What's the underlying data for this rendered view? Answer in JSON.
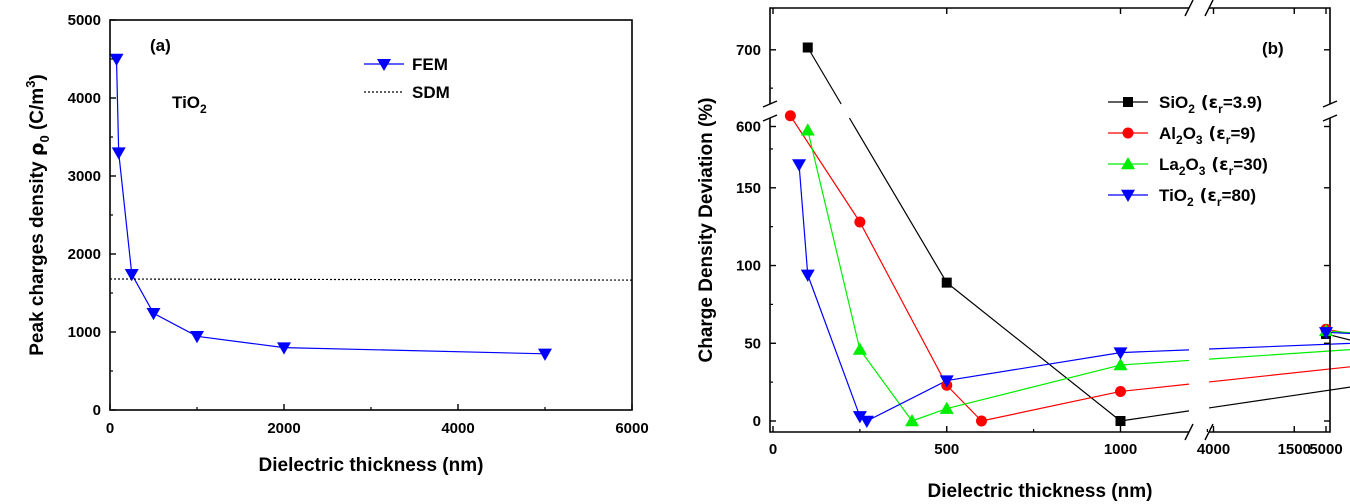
{
  "chart_data": [
    {
      "type": "line",
      "panel": "(a)",
      "annotation": "TiO",
      "annotation_sub": "2",
      "xlabel": "Dielectric thickness (nm)",
      "ylabel": "Peak charges density",
      "ylabel_greek": "ρ",
      "ylabel_sub": "0",
      "ylabel_unit": "(C/m",
      "ylabel_unit_sup": "3",
      "ylabel_unit_close": ")",
      "xlim": [
        0,
        6000
      ],
      "ylim": [
        0,
        5000
      ],
      "xticks": [
        "0",
        "2000",
        "4000",
        "6000"
      ],
      "yticks": [
        "0",
        "1000",
        "2000",
        "3000",
        "4000",
        "5000"
      ],
      "legend_position": "top-right",
      "series": [
        {
          "name": "FEM",
          "color": "#0000ff",
          "marker": "triangle-down",
          "x": [
            75,
            100,
            250,
            500,
            1000,
            2000,
            5000
          ],
          "y": [
            4500,
            3300,
            1740,
            1240,
            945,
            800,
            720
          ]
        },
        {
          "name": "SDM",
          "color": "#000000",
          "style": "dotted",
          "x": [
            0,
            6000
          ],
          "y": [
            1680,
            1665
          ]
        }
      ]
    },
    {
      "type": "line",
      "panel": "(b)",
      "xlabel": "Dielectric thickness (nm)",
      "ylabel": "Charge Density Deviation (%)",
      "x_broken_axis": true,
      "y_broken_axis": true,
      "xticks": [
        "0",
        "500",
        "1000",
        "1500",
        "2000",
        "4000",
        "5000"
      ],
      "yticks_lower": [
        "0",
        "50",
        "100",
        "150"
      ],
      "yticks_upper": [
        "600",
        "700"
      ],
      "legend_position": "right",
      "series": [
        {
          "name": "SiO",
          "formula": [
            [
              "SiO",
              ""
            ],
            [
              "2",
              "sub"
            ],
            [
              " (ε",
              ""
            ],
            [
              "r",
              "sub"
            ],
            [
              "=3.9)",
              ""
            ]
          ],
          "color": "#000000",
          "marker": "square",
          "x": [
            100,
            500,
            1000,
            2000,
            5000
          ],
          "y": [
            703,
            89,
            0,
            33,
            56
          ]
        },
        {
          "name": "Al",
          "formula": [
            [
              "Al",
              ""
            ],
            [
              "2",
              "sub"
            ],
            [
              "O",
              ""
            ],
            [
              "3",
              "sub"
            ],
            [
              " (ε",
              ""
            ],
            [
              "r",
              "sub"
            ],
            [
              "=9)",
              ""
            ]
          ],
          "color": "#ff0000",
          "marker": "circle",
          "x": [
            50,
            250,
            500,
            600,
            1000,
            2000,
            5000
          ],
          "y": [
            614,
            128,
            23,
            0,
            19,
            43,
            59
          ]
        },
        {
          "name": "La",
          "formula": [
            [
              "La",
              ""
            ],
            [
              "2",
              "sub"
            ],
            [
              "O",
              ""
            ],
            [
              "3",
              "sub"
            ],
            [
              " (ε",
              ""
            ],
            [
              "r",
              "sub"
            ],
            [
              "=30)",
              ""
            ]
          ],
          "color": "#00ee00",
          "marker": "triangle-up",
          "x": [
            100,
            250,
            400,
            500,
            1000,
            2000,
            5000
          ],
          "y": [
            187,
            46,
            0,
            8,
            36,
            51,
            58
          ]
        },
        {
          "name": "TiO",
          "formula": [
            [
              "TiO",
              ""
            ],
            [
              "2",
              "sub"
            ],
            [
              " (ε",
              ""
            ],
            [
              "r",
              "sub"
            ],
            [
              "=80)",
              ""
            ]
          ],
          "color": "#0000ff",
          "marker": "triangle-down",
          "x": [
            75,
            100,
            250,
            270,
            500,
            1000,
            2000,
            5000
          ],
          "y": [
            165,
            94,
            3,
            0,
            26,
            44,
            53,
            57
          ]
        }
      ]
    }
  ]
}
